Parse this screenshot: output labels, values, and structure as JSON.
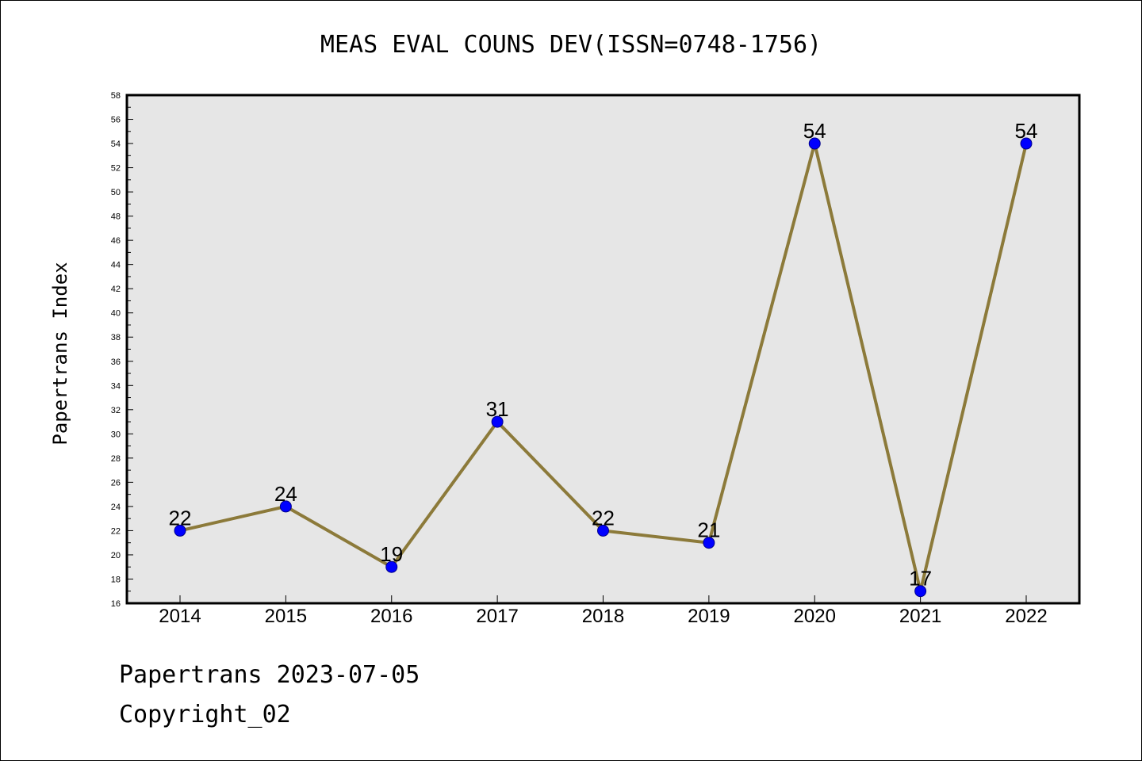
{
  "chart_data": {
    "type": "line",
    "title": "MEAS EVAL COUNS DEV(ISSN=0748-1756)",
    "ylabel": "Papertrans Index",
    "xlabel": "",
    "categories": [
      "2014",
      "2015",
      "2016",
      "2017",
      "2018",
      "2019",
      "2020",
      "2021",
      "2022"
    ],
    "series": [
      {
        "values": [
          22,
          24,
          19,
          31,
          22,
          21,
          54,
          17,
          54
        ]
      }
    ],
    "ylim": [
      16,
      58
    ],
    "ytick_step": 2,
    "grid": false,
    "data_labels": true,
    "colors": {
      "line": "#8c7a3a",
      "marker": "#0000ff",
      "marker_edge": "#00008b",
      "plot_bg": "#e6e6e6"
    }
  },
  "footer": {
    "line1": "Papertrans 2023-07-05",
    "line2": "Copyright_02"
  }
}
